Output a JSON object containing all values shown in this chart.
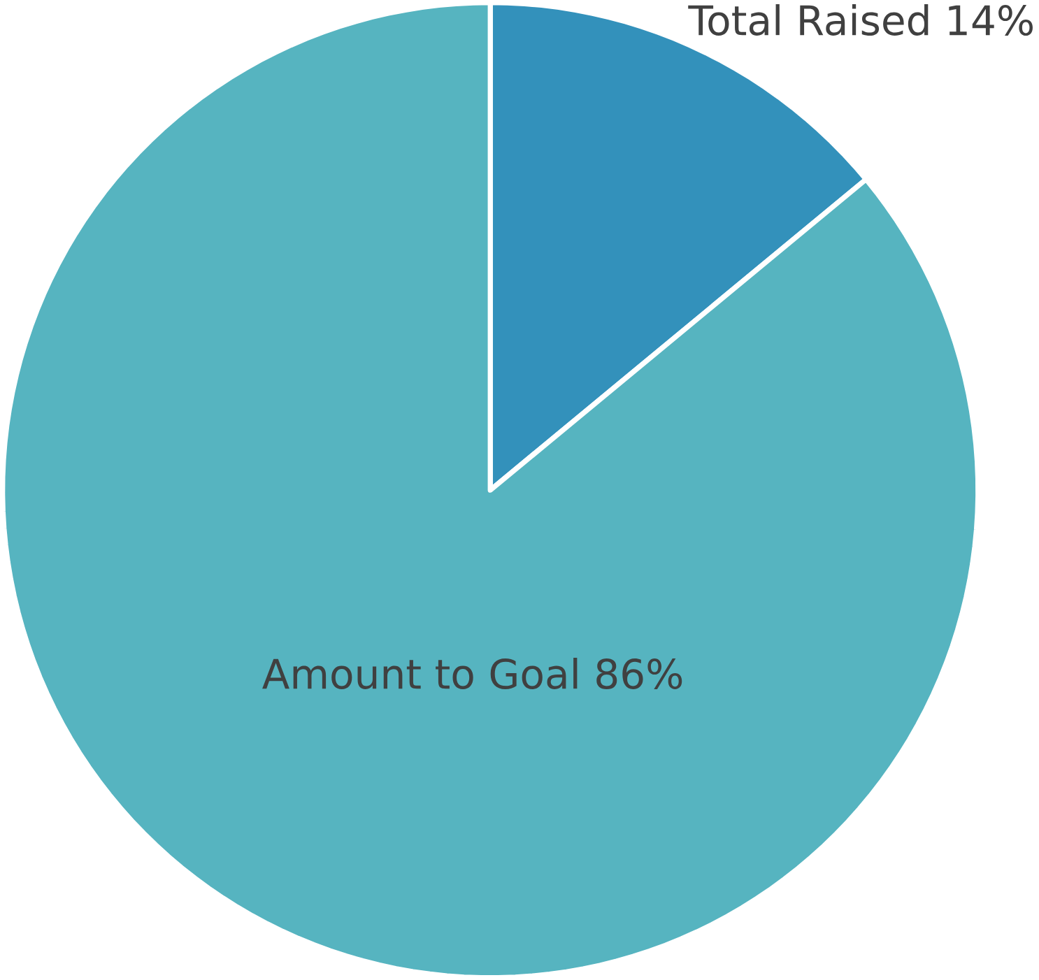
{
  "chart_data": {
    "type": "pie",
    "categories": [
      "Total Raised",
      "Amount to Goal"
    ],
    "values": [
      14,
      86
    ],
    "value_labels": [
      "14%",
      "86%"
    ],
    "colors": [
      "#3391bb",
      "#56b4c0"
    ]
  }
}
